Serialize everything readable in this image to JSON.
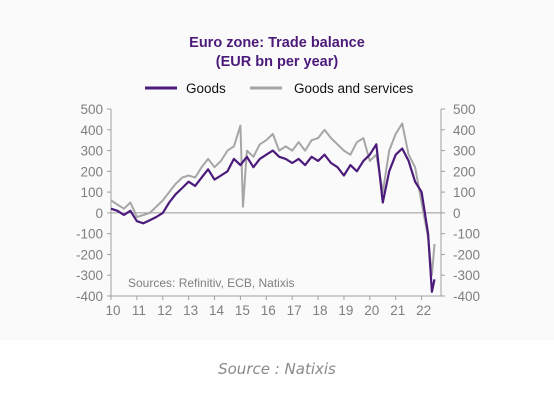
{
  "caption": "Source : Natixis",
  "chart_data": {
    "type": "line",
    "title": "Euro zone: Trade balance",
    "subtitle": "(EUR bn per year)",
    "note": "Sources: Refinitiv, ECB, Natixis",
    "x_tick_labels": [
      "10",
      "11",
      "12",
      "13",
      "14",
      "15",
      "16",
      "17",
      "18",
      "19",
      "20",
      "21",
      "22"
    ],
    "xlim": [
      2010,
      2022.75
    ],
    "ylim": [
      -400,
      500
    ],
    "y_ticks": [
      500,
      400,
      300,
      200,
      100,
      0,
      -100,
      -200,
      -300,
      -400
    ],
    "y_tick_labels_left": [
      "500",
      "400",
      "300",
      "200",
      "100",
      "0",
      "-100",
      "-200",
      "-300",
      "-400"
    ],
    "y_tick_labels_right": [
      "500",
      "400",
      "300",
      "200",
      "100",
      "0",
      "-100",
      "-200",
      "-300",
      "-400"
    ],
    "grid": false,
    "zero_line": true,
    "dual_axis": true,
    "legend": {
      "placement": "top",
      "entries": [
        "Goods",
        "Goods and services"
      ]
    },
    "series": [
      {
        "name": "Goods",
        "color": "#4b1a7a",
        "x": [
          2010.0,
          2010.25,
          2010.5,
          2010.75,
          2011.0,
          2011.25,
          2011.5,
          2011.75,
          2012.0,
          2012.25,
          2012.5,
          2012.75,
          2013.0,
          2013.25,
          2013.5,
          2013.75,
          2014.0,
          2014.25,
          2014.5,
          2014.75,
          2015.0,
          2015.25,
          2015.5,
          2015.75,
          2016.0,
          2016.25,
          2016.5,
          2016.75,
          2017.0,
          2017.25,
          2017.5,
          2017.75,
          2018.0,
          2018.25,
          2018.5,
          2018.75,
          2019.0,
          2019.25,
          2019.5,
          2019.75,
          2020.0,
          2020.25,
          2020.5,
          2020.75,
          2021.0,
          2021.25,
          2021.5,
          2021.75,
          2022.0,
          2022.25,
          2022.4,
          2022.5
        ],
        "y": [
          20,
          10,
          -10,
          10,
          -40,
          -50,
          -35,
          -20,
          0,
          50,
          90,
          120,
          150,
          130,
          170,
          210,
          160,
          180,
          200,
          260,
          230,
          270,
          220,
          260,
          280,
          300,
          270,
          260,
          240,
          260,
          230,
          270,
          250,
          280,
          240,
          220,
          180,
          230,
          200,
          250,
          280,
          330,
          50,
          200,
          280,
          310,
          250,
          150,
          100,
          -100,
          -380,
          -320
        ]
      },
      {
        "name": "Goods and services",
        "color": "#a6a6a6",
        "x": [
          2010.0,
          2010.25,
          2010.5,
          2010.75,
          2011.0,
          2011.25,
          2011.5,
          2011.75,
          2012.0,
          2012.25,
          2012.5,
          2012.75,
          2013.0,
          2013.25,
          2013.5,
          2013.75,
          2014.0,
          2014.25,
          2014.5,
          2014.75,
          2015.0,
          2015.1,
          2015.25,
          2015.5,
          2015.75,
          2016.0,
          2016.25,
          2016.5,
          2016.75,
          2017.0,
          2017.25,
          2017.5,
          2017.75,
          2018.0,
          2018.25,
          2018.5,
          2018.75,
          2019.0,
          2019.25,
          2019.5,
          2019.75,
          2020.0,
          2020.25,
          2020.5,
          2020.75,
          2021.0,
          2021.25,
          2021.5,
          2021.75,
          2022.0,
          2022.25,
          2022.4,
          2022.5
        ],
        "y": [
          60,
          40,
          20,
          50,
          -20,
          -10,
          0,
          30,
          60,
          100,
          140,
          170,
          180,
          170,
          220,
          260,
          220,
          250,
          300,
          320,
          420,
          30,
          300,
          270,
          330,
          350,
          380,
          300,
          320,
          300,
          340,
          300,
          350,
          360,
          400,
          360,
          330,
          300,
          280,
          340,
          360,
          250,
          280,
          100,
          300,
          380,
          430,
          280,
          220,
          50,
          -120,
          -300,
          -150
        ]
      }
    ]
  }
}
